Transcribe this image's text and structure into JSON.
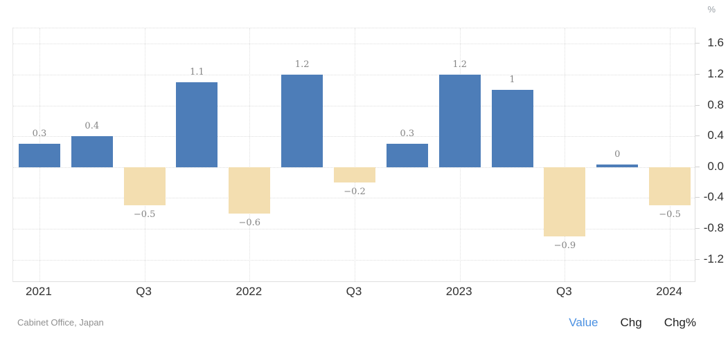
{
  "chart_data": {
    "type": "bar",
    "title": "",
    "unit": "%",
    "categories": [
      "2021",
      "Q3",
      "2022",
      "Q3",
      "2023",
      "Q3",
      "2024"
    ],
    "x_tick_positions": [
      0,
      2,
      4,
      6,
      8,
      10,
      12
    ],
    "values": [
      0.3,
      0.4,
      -0.5,
      1.1,
      -0.6,
      1.2,
      -0.2,
      0.3,
      1.2,
      1,
      -0.9,
      0,
      -0.5
    ],
    "value_labels": [
      "0.3",
      "0.4",
      "−0.5",
      "1.1",
      "−0.6",
      "1.2",
      "−0.2",
      "0.3",
      "1.2",
      "1",
      "−0.9",
      "0",
      "−0.5"
    ],
    "y_ticks": [
      1.6,
      1.2,
      0.8,
      0.4,
      0.0,
      -0.4,
      -0.8,
      -1.2
    ],
    "y_tick_labels": [
      "1.6",
      "1.2",
      "0.8",
      "0.4",
      "0.0",
      "-0.4",
      "-0.8",
      "-1.2"
    ],
    "ylim": [
      -1.5,
      1.8
    ],
    "grid": true,
    "legend_position": "bottom-right",
    "colors": {
      "positive_bar": "#4d7db8",
      "negative_bar": "#f3deb0",
      "grid": "#dedede",
      "axis_text": "#2f2f2f",
      "value_label_text": "#848484"
    }
  },
  "footer": {
    "source": "Cabinet Office, Japan"
  },
  "legend": {
    "items": [
      {
        "label": "Value",
        "active": true,
        "color": "#4a90e2"
      },
      {
        "label": "Chg",
        "active": false,
        "color": "#1f1f1f"
      },
      {
        "label": "Chg%",
        "active": false,
        "color": "#1f1f1f"
      }
    ]
  }
}
